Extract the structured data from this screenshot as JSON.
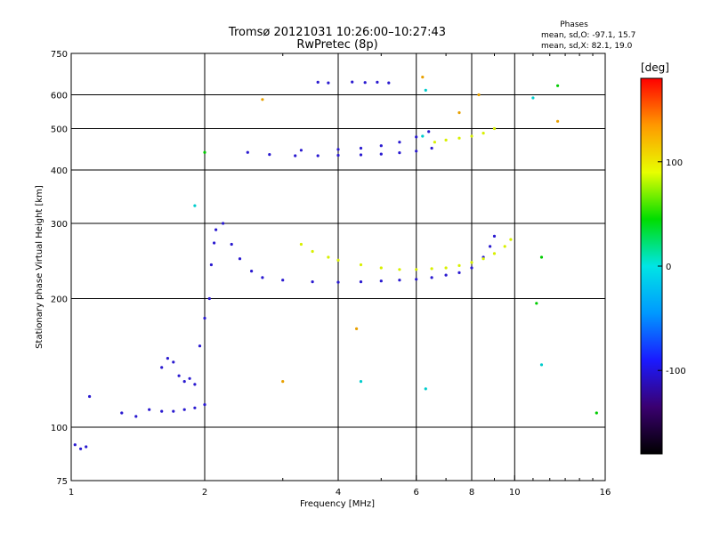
{
  "chart_data": {
    "type": "scatter",
    "title": "Tromsø 20121031 10:26:00–10:27:43",
    "subtitle": "RwPretec (8p)",
    "xlabel": "Frequency [MHz]",
    "ylabel": "Stationary phase Virtual Height [km]",
    "x_scale": "log",
    "y_scale": "log",
    "xlim": [
      1,
      16
    ],
    "ylim": [
      75,
      750
    ],
    "x_ticks": [
      1,
      2,
      4,
      6,
      8,
      10,
      16
    ],
    "y_ticks": [
      75,
      100,
      200,
      300,
      400,
      500,
      600,
      750
    ],
    "grid": true,
    "legend": {
      "title": "Phases",
      "lines": [
        "mean, sd,O: -97.1, 15.7",
        "mean, sd,X:  82.1, 19.0"
      ]
    },
    "colorbar": {
      "label": "[deg]",
      "range": [
        -180,
        180
      ],
      "ticks": [
        100,
        0,
        -100
      ],
      "colors": [
        "#000000",
        "#3a0070",
        "#1a1aff",
        "#0099ff",
        "#00e5e5",
        "#00dd00",
        "#e8ff00",
        "#ff9900",
        "#ff0000"
      ]
    },
    "series": [
      {
        "color": "#2a1ad0",
        "points": [
          [
            2.2,
            300
          ],
          [
            2.3,
            268
          ],
          [
            2.4,
            248
          ],
          [
            2.55,
            232
          ],
          [
            2.7,
            224
          ],
          [
            3,
            221
          ],
          [
            3.5,
            219
          ],
          [
            4,
            218.5
          ],
          [
            4.5,
            219
          ],
          [
            5,
            220
          ],
          [
            5.5,
            221
          ],
          [
            6,
            222
          ],
          [
            6.5,
            224
          ],
          [
            7,
            227
          ],
          [
            7.5,
            230
          ],
          [
            8,
            236
          ],
          [
            8.5,
            250
          ],
          [
            8.8,
            265
          ],
          [
            9,
            280
          ],
          [
            2.5,
            440
          ],
          [
            2.8,
            435
          ],
          [
            3.2,
            432
          ],
          [
            3.6,
            432
          ],
          [
            4,
            433
          ],
          [
            4.5,
            434
          ],
          [
            5,
            436
          ],
          [
            5.5,
            439
          ],
          [
            6,
            443
          ],
          [
            6.5,
            450
          ],
          [
            3.3,
            445
          ],
          [
            4,
            447
          ],
          [
            4.5,
            450
          ],
          [
            5,
            456
          ],
          [
            5.5,
            465
          ],
          [
            6,
            478
          ],
          [
            6.4,
            492
          ],
          [
            3.6,
            642
          ],
          [
            3.8,
            640
          ],
          [
            4.3,
            643
          ],
          [
            4.6,
            641
          ],
          [
            4.9,
            642
          ],
          [
            5.2,
            640
          ],
          [
            1.3,
            108
          ],
          [
            1.4,
            106
          ],
          [
            1.5,
            110
          ],
          [
            1.6,
            109
          ],
          [
            1.7,
            109
          ],
          [
            1.8,
            110
          ],
          [
            1.9,
            111
          ],
          [
            2.0,
            113
          ],
          [
            1.6,
            138
          ],
          [
            1.65,
            145
          ],
          [
            1.7,
            142
          ],
          [
            1.75,
            132
          ],
          [
            1.8,
            128
          ],
          [
            1.85,
            130
          ],
          [
            1.9,
            126
          ],
          [
            1.95,
            155
          ],
          [
            2.0,
            180
          ],
          [
            2.05,
            200
          ],
          [
            2.07,
            240
          ],
          [
            2.1,
            270
          ],
          [
            2.12,
            290
          ],
          [
            1.02,
            91
          ],
          [
            1.05,
            89
          ],
          [
            1.08,
            90
          ],
          [
            1.1,
            118
          ]
        ]
      },
      {
        "color": "#d8f000",
        "points": [
          [
            3.3,
            268
          ],
          [
            3.5,
            258
          ],
          [
            3.8,
            250
          ],
          [
            4,
            246
          ],
          [
            4.5,
            240
          ],
          [
            5,
            236
          ],
          [
            5.5,
            234
          ],
          [
            6,
            234
          ],
          [
            6.5,
            235
          ],
          [
            7,
            236
          ],
          [
            7.5,
            239
          ],
          [
            8,
            243
          ],
          [
            8.5,
            248
          ],
          [
            9,
            255
          ],
          [
            9.5,
            265
          ],
          [
            9.8,
            275
          ],
          [
            6.6,
            465
          ],
          [
            7,
            470
          ],
          [
            7.5,
            475
          ],
          [
            8,
            480
          ],
          [
            8.5,
            488
          ],
          [
            9,
            500
          ]
        ]
      },
      {
        "color": "#e8a000",
        "points": [
          [
            2.7,
            585
          ],
          [
            6.2,
            660
          ],
          [
            7.5,
            545
          ],
          [
            8.3,
            600
          ],
          [
            12.5,
            520
          ],
          [
            4.4,
            170
          ],
          [
            3,
            128
          ]
        ]
      },
      {
        "color": "#00cccc",
        "points": [
          [
            1.9,
            330
          ],
          [
            6.3,
            615
          ],
          [
            6.2,
            480
          ],
          [
            11,
            590
          ],
          [
            11.5,
            140
          ],
          [
            4.5,
            128
          ],
          [
            6.3,
            123
          ]
        ]
      },
      {
        "color": "#00cc00",
        "points": [
          [
            2.0,
            440
          ],
          [
            12.5,
            630
          ],
          [
            11.5,
            250
          ],
          [
            11.2,
            195
          ],
          [
            15.3,
            108
          ]
        ]
      }
    ]
  }
}
